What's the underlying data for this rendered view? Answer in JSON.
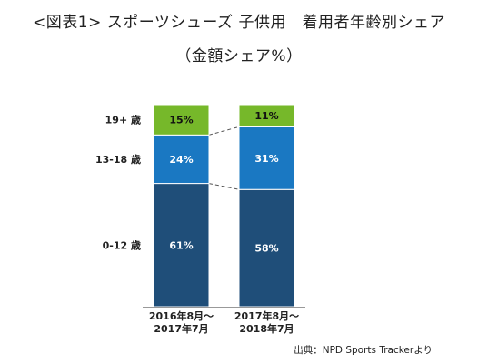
{
  "chart_data": {
    "type": "bar",
    "stacked": true,
    "title": "<図表1> スポーツシューズ 子供用　着用者年齢別シェア",
    "subtitle": "（金額シェア%）",
    "categories": [
      "2016年8月～\n2017年7月",
      "2017年8月～\n2018年7月"
    ],
    "series": [
      {
        "name": "0-12 歳",
        "values": [
          61,
          58
        ],
        "labels": [
          "61%",
          "58%"
        ],
        "color": "#1f4e79"
      },
      {
        "name": "13-18 歳",
        "values": [
          24,
          31
        ],
        "labels": [
          "24%",
          "31%"
        ],
        "color": "#1a78c2"
      },
      {
        "name": "19+ 歳",
        "values": [
          15,
          11
        ],
        "labels": [
          "15%",
          "11%"
        ],
        "color": "#76b82a"
      }
    ],
    "ylim": [
      0,
      100
    ],
    "grid": false,
    "legend": "left",
    "source": "出典：NPD Sports Trackerより"
  }
}
